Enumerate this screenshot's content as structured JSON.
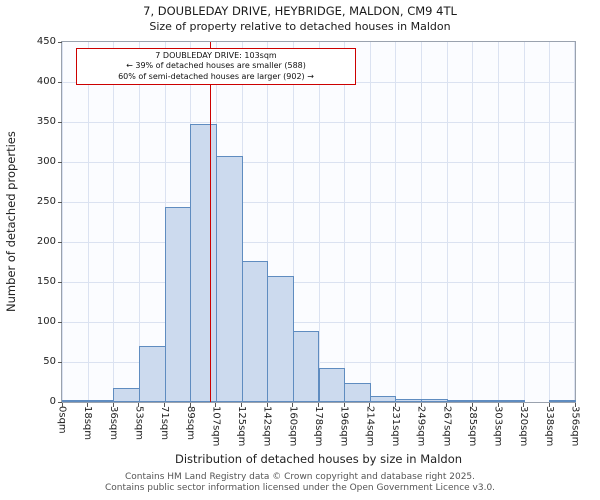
{
  "title": "7, DOUBLEDAY DRIVE, HEYBRIDGE, MALDON, CM9 4TL",
  "subtitle": "Size of property relative to detached houses in Maldon",
  "annotation": {
    "line1": "7 DOUBLEDAY DRIVE: 103sqm",
    "line2": "← 39% of detached houses are smaller (588)",
    "line3": "60% of semi-detached houses are larger (902) →"
  },
  "chart_data": {
    "type": "bar",
    "title": "7, DOUBLEDAY DRIVE, HEYBRIDGE, MALDON, CM9 4TL — Size of property relative to detached houses in Maldon",
    "xlabel": "Distribution of detached houses by size in Maldon",
    "ylabel": "Number of detached properties",
    "xlim": [
      0,
      356
    ],
    "ylim": [
      0,
      450
    ],
    "yticks": [
      0,
      50,
      100,
      150,
      200,
      250,
      300,
      350,
      400,
      450
    ],
    "bin_edges_sqm": [
      0,
      18,
      36,
      53,
      71,
      89,
      107,
      125,
      142,
      160,
      178,
      196,
      214,
      231,
      249,
      267,
      285,
      303,
      320,
      338,
      356
    ],
    "tick_labels": [
      "0sqm",
      "18sqm",
      "36sqm",
      "53sqm",
      "71sqm",
      "89sqm",
      "107sqm",
      "125sqm",
      "142sqm",
      "160sqm",
      "178sqm",
      "196sqm",
      "214sqm",
      "231sqm",
      "249sqm",
      "267sqm",
      "285sqm",
      "303sqm",
      "320sqm",
      "338sqm",
      "356sqm"
    ],
    "values": [
      2,
      1,
      18,
      70,
      244,
      347,
      307,
      176,
      158,
      89,
      43,
      24,
      7,
      4,
      4,
      3,
      1,
      2,
      0,
      1
    ],
    "marker_sqm": 103,
    "marker_color": "#cc0000",
    "bar_fill": "#ccdaee",
    "bar_border": "#5f8cc0",
    "grid": true,
    "legend": "none"
  },
  "footer": {
    "line1": "Contains HM Land Registry data © Crown copyright and database right 2025.",
    "line2": "Contains public sector information licensed under the Open Government Licence v3.0."
  }
}
